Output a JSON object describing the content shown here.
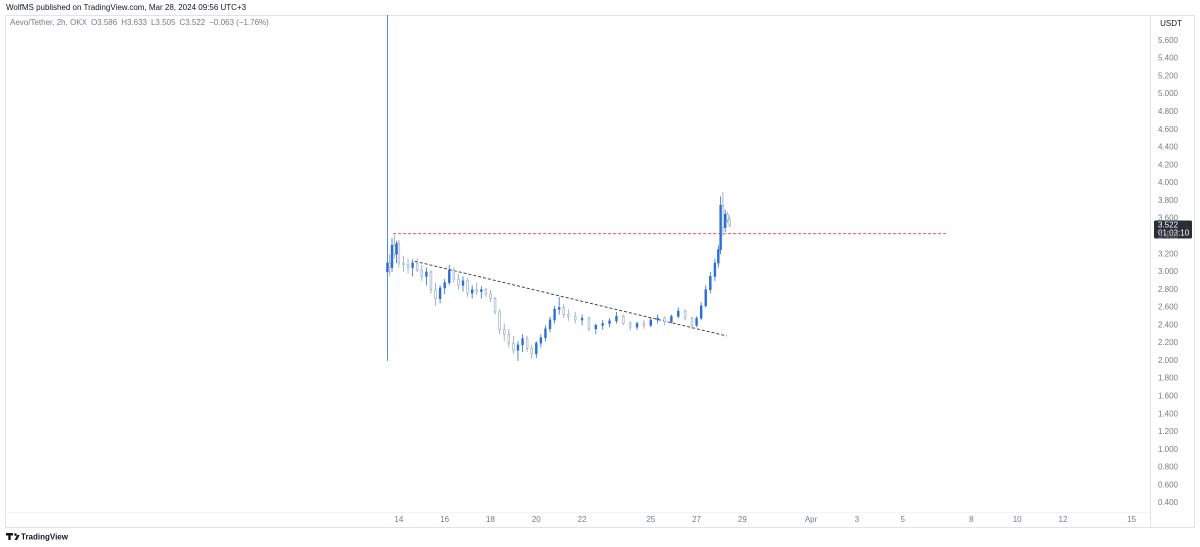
{
  "header": {
    "title": "WolfMS published on TradingView.com, Mar 28, 2024 09:56 UTC+3"
  },
  "footer": {
    "brand": "TradingView"
  },
  "chart_data": {
    "type": "candlestick",
    "legend": "Aevo/Tether, 2h, OKX",
    "ohlc": [
      "O3.586",
      "H3.633",
      "L3.505",
      "C3.522",
      "−0.063 (−1.76%)"
    ],
    "currency": "USDT",
    "last_price_label": "3.522",
    "countdown": "01:03:10",
    "up_color": "#2a6fd6",
    "down_color": "#8fa3bf",
    "series": [
      {
        "name": "Aevo/Tether",
        "x": [
          13.5,
          13.6,
          13.7,
          13.8,
          13.9,
          14.0,
          14.2,
          14.4,
          14.6,
          14.8,
          15.0,
          15.2,
          15.4,
          15.6,
          15.8,
          16.0,
          16.2,
          16.4,
          16.6,
          16.8,
          17.0,
          17.2,
          17.4,
          17.6,
          17.8,
          18.0,
          18.2,
          18.4,
          18.6,
          18.8,
          19.0,
          19.2,
          19.4,
          19.6,
          19.8,
          20.0,
          20.2,
          20.4,
          20.6,
          20.8,
          21.0,
          21.2,
          21.4,
          21.7,
          22.0,
          22.3,
          22.6,
          22.9,
          23.2,
          23.5,
          23.8,
          24.1,
          24.4,
          24.7,
          25.0,
          25.3,
          25.6,
          25.9,
          26.2,
          26.5,
          26.8,
          27.0,
          27.2,
          27.4,
          27.6,
          27.8,
          27.95,
          28.05,
          28.15,
          28.25,
          28.35,
          28.45
        ],
        "open": [
          3.0,
          3.1,
          3.05,
          3.3,
          3.2,
          3.32,
          3.1,
          3.08,
          3.05,
          3.1,
          3.02,
          2.95,
          3.0,
          2.8,
          2.7,
          2.82,
          2.88,
          3.02,
          2.92,
          2.85,
          2.9,
          2.76,
          2.8,
          2.78,
          2.8,
          2.75,
          2.7,
          2.55,
          2.35,
          2.3,
          2.2,
          2.12,
          2.18,
          2.25,
          2.14,
          2.08,
          2.2,
          2.26,
          2.36,
          2.46,
          2.58,
          2.6,
          2.52,
          2.5,
          2.46,
          2.48,
          2.36,
          2.4,
          2.42,
          2.45,
          2.5,
          2.42,
          2.38,
          2.42,
          2.4,
          2.46,
          2.48,
          2.44,
          2.5,
          2.56,
          2.48,
          2.4,
          2.48,
          2.62,
          2.8,
          2.95,
          3.1,
          3.25,
          3.75,
          3.5,
          3.65,
          3.586
        ],
        "high": [
          5.89,
          3.2,
          3.38,
          3.42,
          3.35,
          3.36,
          3.18,
          3.15,
          3.14,
          3.15,
          3.08,
          3.05,
          3.02,
          2.88,
          2.85,
          2.92,
          3.08,
          3.05,
          2.98,
          2.95,
          2.93,
          2.85,
          2.88,
          2.84,
          2.82,
          2.8,
          2.72,
          2.58,
          2.42,
          2.36,
          2.28,
          2.22,
          2.3,
          2.28,
          2.18,
          2.22,
          2.3,
          2.4,
          2.5,
          2.62,
          2.72,
          2.64,
          2.58,
          2.55,
          2.52,
          2.5,
          2.42,
          2.46,
          2.48,
          2.55,
          2.52,
          2.45,
          2.44,
          2.46,
          2.48,
          2.52,
          2.5,
          2.52,
          2.6,
          2.58,
          2.5,
          2.5,
          2.66,
          2.85,
          3.0,
          3.15,
          3.3,
          3.85,
          3.9,
          3.7,
          3.68,
          3.633
        ],
        "low": [
          2.0,
          2.95,
          3.0,
          3.15,
          3.1,
          3.05,
          3.0,
          2.98,
          2.95,
          3.0,
          2.9,
          2.85,
          2.75,
          2.62,
          2.65,
          2.75,
          2.85,
          2.88,
          2.8,
          2.78,
          2.72,
          2.7,
          2.74,
          2.7,
          2.72,
          2.66,
          2.52,
          2.3,
          2.22,
          2.15,
          2.08,
          2.0,
          2.1,
          2.1,
          2.02,
          2.03,
          2.15,
          2.22,
          2.32,
          2.42,
          2.52,
          2.48,
          2.45,
          2.42,
          2.4,
          2.33,
          2.3,
          2.35,
          2.38,
          2.42,
          2.4,
          2.34,
          2.35,
          2.36,
          2.38,
          2.42,
          2.4,
          2.42,
          2.48,
          2.46,
          2.36,
          2.38,
          2.46,
          2.6,
          2.76,
          2.9,
          3.05,
          3.2,
          3.4,
          3.45,
          3.55,
          3.505
        ],
        "close": [
          3.1,
          3.05,
          3.3,
          3.2,
          3.32,
          3.1,
          3.08,
          3.05,
          3.1,
          3.02,
          2.95,
          3.0,
          2.8,
          2.7,
          2.82,
          2.88,
          3.02,
          2.92,
          2.85,
          2.9,
          2.76,
          2.8,
          2.78,
          2.8,
          2.75,
          2.7,
          2.55,
          2.35,
          2.3,
          2.2,
          2.12,
          2.18,
          2.25,
          2.14,
          2.08,
          2.2,
          2.26,
          2.36,
          2.46,
          2.58,
          2.6,
          2.52,
          2.5,
          2.46,
          2.48,
          2.36,
          2.4,
          2.42,
          2.45,
          2.5,
          2.42,
          2.38,
          2.42,
          2.4,
          2.46,
          2.48,
          2.44,
          2.5,
          2.56,
          2.48,
          2.4,
          2.48,
          2.62,
          2.8,
          2.95,
          3.1,
          3.25,
          3.75,
          3.5,
          3.65,
          3.586,
          3.522
        ]
      }
    ],
    "drawings": [
      {
        "x": [
          13.75,
          37.93
        ],
        "y": [
          3.43,
          3.43
        ],
        "color": "#f23645"
      },
      {
        "x": [
          14.7,
          28.32
        ],
        "y": [
          3.12,
          2.28
        ],
        "color": "#333333"
      }
    ],
    "xlim": [
      -3.2,
      46.8
    ],
    "ylim": [
      0.3,
      5.89
    ],
    "xticks": [
      14,
      16,
      18,
      20,
      22,
      25,
      27,
      29,
      {
        "value": 32,
        "label": "Apr"
      },
      {
        "value": 34,
        "label": "3"
      },
      {
        "value": 36,
        "label": "5"
      },
      {
        "value": 39,
        "label": "8"
      },
      {
        "value": 41,
        "label": "10"
      },
      {
        "value": 43,
        "label": "12"
      },
      {
        "value": 46,
        "label": "15"
      }
    ],
    "yticks": [
      {
        "value": 0.4,
        "label": "0.400"
      },
      {
        "value": 0.6,
        "label": "0.600"
      },
      {
        "value": 0.8,
        "label": "0.800"
      },
      {
        "value": 1.0,
        "label": "1.000"
      },
      {
        "value": 1.2,
        "label": "1.200"
      },
      {
        "value": 1.4,
        "label": "1.400"
      },
      {
        "value": 1.6,
        "label": "1.600"
      },
      {
        "value": 1.8,
        "label": "1.800"
      },
      {
        "value": 2.0,
        "label": "2.000"
      },
      {
        "value": 2.2,
        "label": "2.200"
      },
      {
        "value": 2.4,
        "label": "2.400"
      },
      {
        "value": 2.6,
        "label": "2.600"
      },
      {
        "value": 2.8,
        "label": "2.800"
      },
      {
        "value": 3.0,
        "label": "3.000"
      },
      {
        "value": 3.2,
        "label": "3.200"
      },
      {
        "value": 3.4,
        "label": "3.400"
      },
      {
        "value": 3.6,
        "label": "3.600"
      },
      {
        "value": 3.8,
        "label": "3.800"
      },
      {
        "value": 4.0,
        "label": "4.000"
      },
      {
        "value": 4.2,
        "label": "4.200"
      },
      {
        "value": 4.4,
        "label": "4.400"
      },
      {
        "value": 4.6,
        "label": "4.600"
      },
      {
        "value": 4.8,
        "label": "4.800"
      },
      {
        "value": 5.0,
        "label": "5.000"
      },
      {
        "value": 5.2,
        "label": "5.200"
      },
      {
        "value": 5.4,
        "label": "5.400"
      },
      {
        "value": 5.6,
        "label": "5.600"
      }
    ]
  }
}
